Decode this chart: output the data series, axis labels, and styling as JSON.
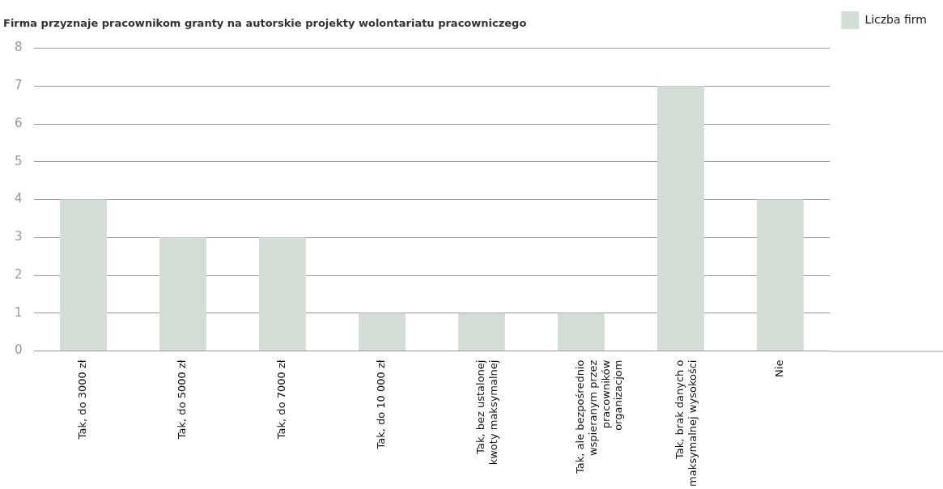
{
  "chart_data": {
    "type": "bar",
    "title": "Firma przyznaje pracownikom granty na autorskie projekty wolontariatu pracowniczego",
    "categories": [
      "Tak, do 3000 zł",
      "Tak, do 5000 zł",
      "Tak, do 7000 zł",
      "Tak, do 10 000 zł",
      "Tak, bez ustalonej kwoty maksymalnej",
      "Tak, ale bezpośrednio wspieranym przez pracowników organizacjom",
      "Tak, brak danych o maksymalnej wysokości",
      "Nie"
    ],
    "series": [
      {
        "name": "Liczba firm",
        "color": "#d3ddd5",
        "values": [
          4,
          3,
          3,
          1,
          1,
          1,
          7,
          4
        ]
      }
    ],
    "ylim": [
      0,
      8
    ],
    "yticks": [
      0,
      1,
      2,
      3,
      4,
      5,
      6,
      7,
      8
    ],
    "grid": "y",
    "legend": "right"
  }
}
